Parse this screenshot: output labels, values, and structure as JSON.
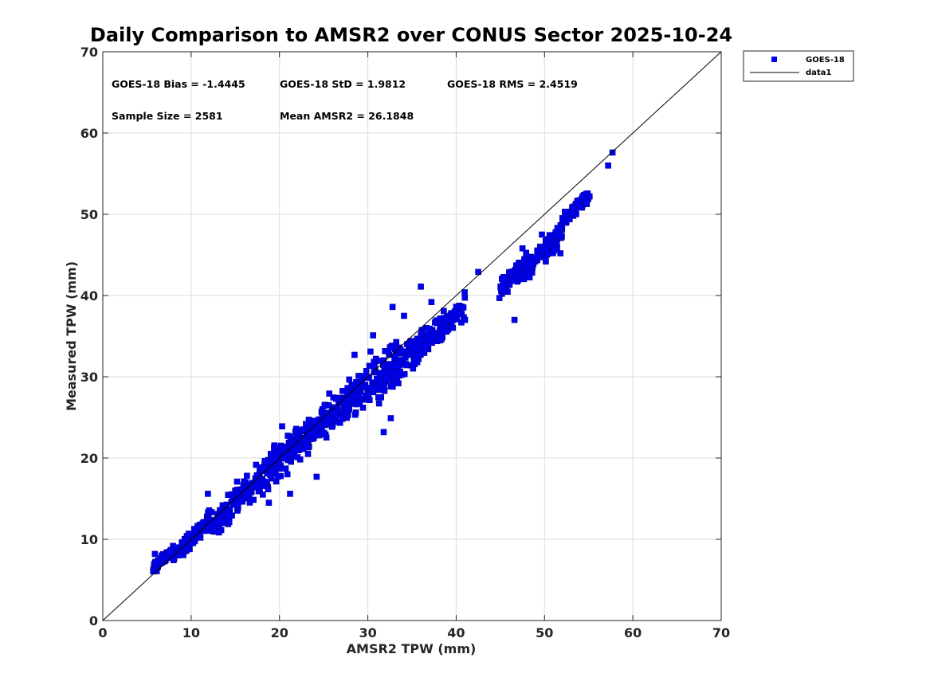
{
  "chart_data": {
    "type": "scatter",
    "title": "Daily Comparison to AMSR2 over CONUS Sector 2025-10-24",
    "xlabel": "AMSR2 TPW (mm)",
    "ylabel": "Measured TPW (mm)",
    "xlim": [
      0,
      70
    ],
    "ylim": [
      0,
      70
    ],
    "xticks": [
      0,
      10,
      20,
      30,
      40,
      50,
      60,
      70
    ],
    "yticks": [
      0,
      10,
      20,
      30,
      40,
      50,
      60,
      70
    ],
    "grid": true,
    "legend_position": "outside top-right",
    "stats": {
      "bias_label": "GOES-18 Bias = -1.4445",
      "std_label": "GOES-18 StD = 1.9812",
      "rms_label": "GOES-18 RMS = 2.4519",
      "sample_label": "Sample Size = 2581",
      "mean_label": "Mean AMSR2 = 26.1848"
    },
    "series": [
      {
        "name": "GOES-18",
        "kind": "scatter",
        "marker": "square",
        "color": "#0000ee",
        "bands": [
          {
            "x": [
              5.7,
              8
            ],
            "y_offset": [
              -0.3,
              1.8
            ]
          },
          {
            "x": [
              8,
              12
            ],
            "y_offset": [
              -1.5,
              1.6
            ]
          },
          {
            "x": [
              12,
              17
            ],
            "y_offset": [
              -2.8,
              2
            ]
          },
          {
            "x": [
              17,
              22
            ],
            "y_offset": [
              -3.5,
              2.8
            ]
          },
          {
            "x": [
              22,
              27
            ],
            "y_offset": [
              -3.5,
              2.5
            ]
          },
          {
            "x": [
              27,
              31
            ],
            "y_offset": [
              -4,
              2.5
            ]
          },
          {
            "x": [
              31,
              35
            ],
            "y_offset": [
              -5.5,
              2
            ]
          },
          {
            "x": [
              35,
              41
            ],
            "y_offset": [
              -4.5,
              0
            ]
          },
          {
            "x": [
              45,
              48
            ],
            "y_offset": [
              -6.5,
              -2
            ]
          },
          {
            "x": [
              48,
              52
            ],
            "y_offset": [
              -6.5,
              -2.5
            ]
          },
          {
            "x": [
              52,
              55
            ],
            "y_offset": [
              -4,
              -1.5
            ]
          }
        ],
        "points": [
          [
            5.9,
            8.2
          ],
          [
            11.9,
            15.6
          ],
          [
            15.2,
            17.1
          ],
          [
            18.8,
            14.5
          ],
          [
            20.3,
            23.9
          ],
          [
            21.2,
            15.6
          ],
          [
            24.2,
            17.7
          ],
          [
            28.5,
            32.7
          ],
          [
            30.3,
            33.1
          ],
          [
            30.6,
            35.1
          ],
          [
            31.8,
            23.2
          ],
          [
            32.6,
            24.9
          ],
          [
            32.8,
            38.6
          ],
          [
            34.1,
            37.5
          ],
          [
            36.0,
            41.1
          ],
          [
            36.6,
            36.0
          ],
          [
            37.2,
            39.2
          ],
          [
            38.6,
            38.1
          ],
          [
            41.0,
            37.0
          ],
          [
            42.5,
            42.9
          ],
          [
            44.9,
            39.7
          ],
          [
            46.2,
            42.9
          ],
          [
            46.6,
            37.0
          ],
          [
            47.5,
            45.8
          ],
          [
            49.7,
            47.5
          ],
          [
            51.3,
            47.4
          ],
          [
            51.8,
            45.2
          ],
          [
            52.3,
            50.3
          ],
          [
            53.2,
            50.7
          ],
          [
            54.3,
            52.2
          ],
          [
            55.1,
            52.2
          ],
          [
            57.2,
            56.0
          ],
          [
            57.7,
            57.6
          ]
        ]
      },
      {
        "name": "data1",
        "kind": "line",
        "color": "#000000",
        "x": [
          0,
          70
        ],
        "y": [
          0,
          70
        ]
      }
    ]
  }
}
